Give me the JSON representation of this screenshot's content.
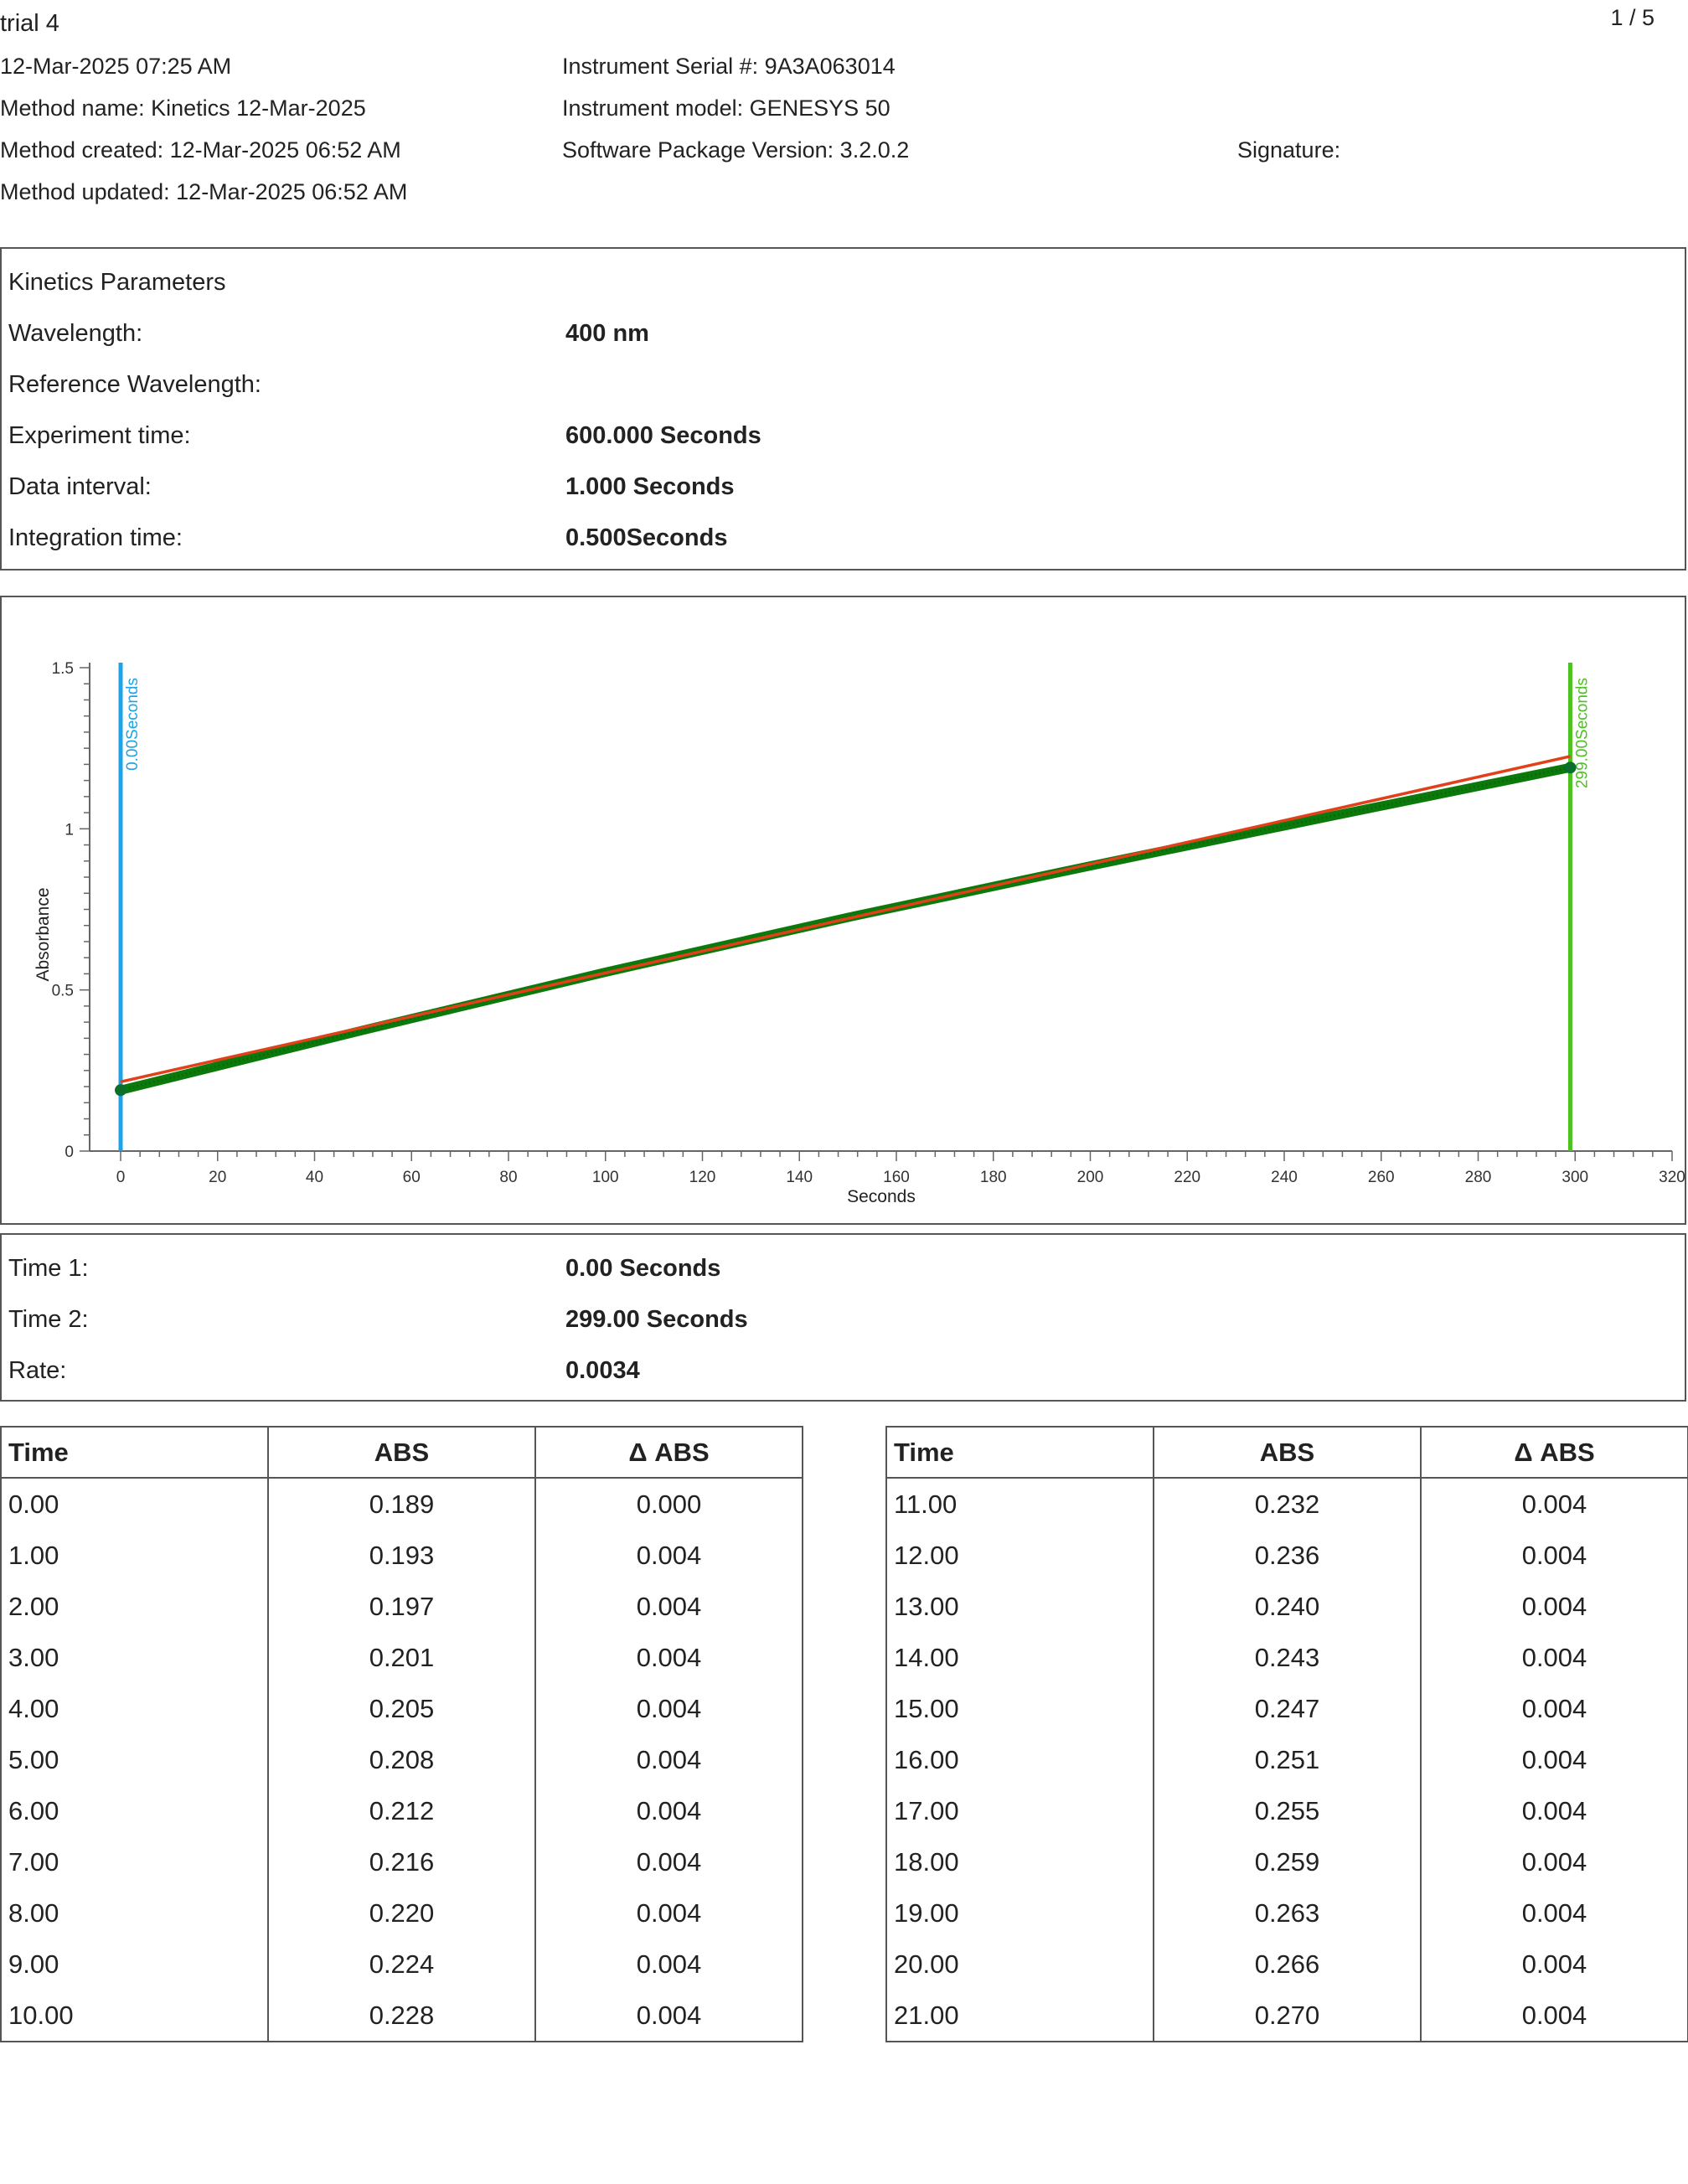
{
  "header": {
    "title": "trial 4",
    "page": "1 / 5",
    "timestamp": "12-Mar-2025 07:25 AM",
    "method_name": "Method name: Kinetics 12-Mar-2025",
    "method_created": "Method created: 12-Mar-2025 06:52 AM",
    "method_updated": "Method updated: 12-Mar-2025 06:52 AM",
    "serial": "Instrument Serial #: 9A3A063014",
    "model": "Instrument model: GENESYS 50",
    "software": "Software Package Version: 3.2.0.2",
    "signature": "Signature:"
  },
  "params": {
    "title": "Kinetics Parameters",
    "rows": [
      {
        "label": "Wavelength:",
        "value": "400 nm"
      },
      {
        "label": "Reference Wavelength:",
        "value": ""
      },
      {
        "label": "Experiment time:",
        "value": "600.000 Seconds"
      },
      {
        "label": "Data interval:",
        "value": "1.000 Seconds"
      },
      {
        "label": "Integration time:",
        "value": "0.500Seconds"
      }
    ]
  },
  "chart_data": {
    "type": "scatter",
    "xlabel": "Seconds",
    "ylabel": "Absorbance",
    "xlim": [
      0,
      320
    ],
    "ylim": [
      0,
      1.5
    ],
    "xticks": [
      "0",
      "20",
      "40",
      "60",
      "80",
      "100",
      "120",
      "140",
      "160",
      "180",
      "200",
      "220",
      "240",
      "260",
      "280",
      "300",
      "320"
    ],
    "yticks": [
      "0",
      "0.5",
      "1",
      "1.5"
    ],
    "series": [
      {
        "kind": "data",
        "color": "#0b7a0b",
        "x_start": 0,
        "x_end": 299,
        "points": [
          [
            0,
            0.189
          ],
          [
            50,
            0.375
          ],
          [
            100,
            0.555
          ],
          [
            150,
            0.725
          ],
          [
            200,
            0.885
          ],
          [
            250,
            1.04
          ],
          [
            299,
            1.19
          ]
        ]
      },
      {
        "kind": "fit",
        "color": "#e0411a",
        "points": [
          [
            0,
            0.215
          ],
          [
            299,
            1.225
          ]
        ]
      }
    ],
    "markers": [
      {
        "x": 0,
        "label": "0.00Seconds",
        "color": "#1ea3e6"
      },
      {
        "x": 299,
        "label": "299.00Seconds",
        "color": "#4cc21f"
      }
    ]
  },
  "results": {
    "rows": [
      {
        "label": "Time 1:",
        "value": "0.00 Seconds"
      },
      {
        "label": "Time 2:",
        "value": "299.00 Seconds"
      },
      {
        "label": "Rate:",
        "value": "0.0034"
      }
    ]
  },
  "table": {
    "headers": [
      "Time",
      "ABS",
      "Δ ABS"
    ],
    "left": [
      [
        "0.00",
        "0.189",
        "0.000"
      ],
      [
        "1.00",
        "0.193",
        "0.004"
      ],
      [
        "2.00",
        "0.197",
        "0.004"
      ],
      [
        "3.00",
        "0.201",
        "0.004"
      ],
      [
        "4.00",
        "0.205",
        "0.004"
      ],
      [
        "5.00",
        "0.208",
        "0.004"
      ],
      [
        "6.00",
        "0.212",
        "0.004"
      ],
      [
        "7.00",
        "0.216",
        "0.004"
      ],
      [
        "8.00",
        "0.220",
        "0.004"
      ],
      [
        "9.00",
        "0.224",
        "0.004"
      ],
      [
        "10.00",
        "0.228",
        "0.004"
      ]
    ],
    "right": [
      [
        "11.00",
        "0.232",
        "0.004"
      ],
      [
        "12.00",
        "0.236",
        "0.004"
      ],
      [
        "13.00",
        "0.240",
        "0.004"
      ],
      [
        "14.00",
        "0.243",
        "0.004"
      ],
      [
        "15.00",
        "0.247",
        "0.004"
      ],
      [
        "16.00",
        "0.251",
        "0.004"
      ],
      [
        "17.00",
        "0.255",
        "0.004"
      ],
      [
        "18.00",
        "0.259",
        "0.004"
      ],
      [
        "19.00",
        "0.263",
        "0.004"
      ],
      [
        "20.00",
        "0.266",
        "0.004"
      ],
      [
        "21.00",
        "0.270",
        "0.004"
      ]
    ]
  }
}
